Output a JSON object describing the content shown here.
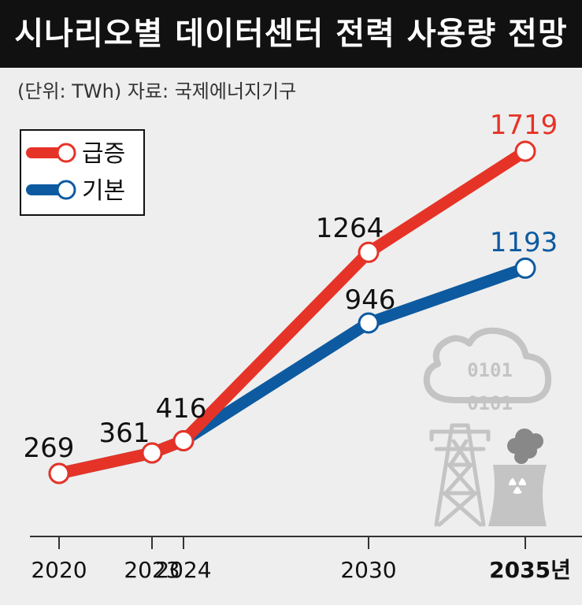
{
  "title": "시나리오별 데이터센터 전력 사용량 전망",
  "subtitle": "(단위: TWh)  자료: 국제에너지기구",
  "colors": {
    "surge": "#e63327",
    "base": "#0d5aa0",
    "icon_gray": "#c4c4c4",
    "icon_dark": "#888888",
    "background": "#eeeeee"
  },
  "chart_data": {
    "type": "line",
    "categories": [
      "2020",
      "2023",
      "2024",
      "2030",
      "2035년"
    ],
    "series": [
      {
        "name": "급증",
        "values": [
          269,
          361,
          416,
          1264,
          1719
        ]
      },
      {
        "name": "기본",
        "values": [
          269,
          361,
          416,
          946,
          1193
        ]
      }
    ],
    "data_labels": [
      "269",
      "361",
      "416",
      "1264",
      "946",
      "1719",
      "1193"
    ],
    "legend_position": "top-left",
    "grid": false
  },
  "illustration": {
    "cloud_binary": [
      "0101",
      "0101"
    ],
    "icons": [
      "cloud-icon",
      "power-tower-icon",
      "nuclear-plant-icon"
    ]
  }
}
